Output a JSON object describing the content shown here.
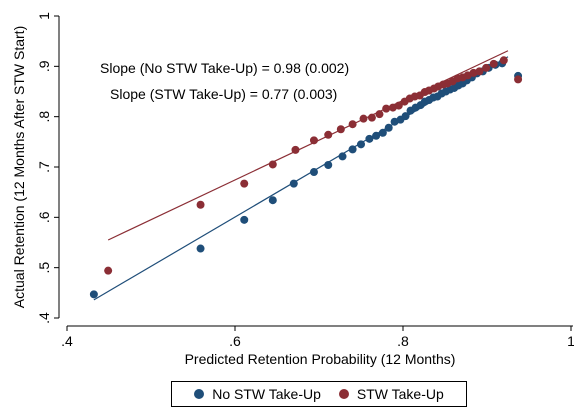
{
  "chart_data": {
    "type": "scatter",
    "title": "",
    "xlabel": "Predicted Retention Probability (12 Months)",
    "ylabel": "Actual Retention (12 Months After STW Start)",
    "xlim": [
      0.4,
      1.0
    ],
    "ylim": [
      0.4,
      1.0
    ],
    "xticks": [
      {
        "value": 0.4,
        "label": ".4"
      },
      {
        "value": 0.6,
        "label": ".6"
      },
      {
        "value": 0.8,
        "label": ".8"
      },
      {
        "value": 1.0,
        "label": "1"
      }
    ],
    "yticks": [
      {
        "value": 0.4,
        "label": ".4"
      },
      {
        "value": 0.5,
        "label": ".5"
      },
      {
        "value": 0.6,
        "label": ".6"
      },
      {
        "value": 0.7,
        "label": ".7"
      },
      {
        "value": 0.8,
        "label": ".8"
      },
      {
        "value": 0.9,
        "label": ".9"
      },
      {
        "value": 1.0,
        "label": "1"
      }
    ],
    "grid": false,
    "legend_position": "bottom",
    "annotations": [
      "Slope (No STW Take-Up) = 0.98 (0.002)",
      "Slope (STW Take-Up) = 0.77 (0.003)"
    ],
    "series": [
      {
        "name": "No STW Take-Up",
        "color": "#1f4e79",
        "x": [
          0.432,
          0.559,
          0.611,
          0.645,
          0.67,
          0.694,
          0.711,
          0.728,
          0.74,
          0.75,
          0.76,
          0.768,
          0.776,
          0.783,
          0.79,
          0.797,
          0.803,
          0.809,
          0.815,
          0.821,
          0.826,
          0.831,
          0.836,
          0.841,
          0.846,
          0.851,
          0.856,
          0.861,
          0.866,
          0.871,
          0.876,
          0.882,
          0.888,
          0.895,
          0.902,
          0.91,
          0.918,
          0.937
        ],
        "y": [
          0.447,
          0.538,
          0.595,
          0.634,
          0.667,
          0.69,
          0.704,
          0.721,
          0.735,
          0.745,
          0.756,
          0.762,
          0.768,
          0.778,
          0.79,
          0.794,
          0.801,
          0.812,
          0.818,
          0.823,
          0.83,
          0.833,
          0.838,
          0.84,
          0.846,
          0.85,
          0.854,
          0.857,
          0.862,
          0.866,
          0.872,
          0.878,
          0.886,
          0.89,
          0.897,
          0.903,
          0.906,
          0.881
        ],
        "fit": {
          "slope": 0.98,
          "x": [
            0.432,
            0.925
          ],
          "y": [
            0.436,
            0.919
          ]
        }
      },
      {
        "name": "STW Take-Up",
        "color": "#8b2e35",
        "x": [
          0.449,
          0.559,
          0.611,
          0.645,
          0.672,
          0.694,
          0.711,
          0.726,
          0.74,
          0.753,
          0.763,
          0.772,
          0.78,
          0.788,
          0.795,
          0.802,
          0.808,
          0.814,
          0.82,
          0.826,
          0.831,
          0.837,
          0.842,
          0.848,
          0.853,
          0.859,
          0.865,
          0.871,
          0.877,
          0.884,
          0.891,
          0.899,
          0.908,
          0.92,
          0.937
        ],
        "y": [
          0.494,
          0.625,
          0.667,
          0.705,
          0.734,
          0.753,
          0.764,
          0.775,
          0.785,
          0.796,
          0.798,
          0.805,
          0.816,
          0.818,
          0.822,
          0.83,
          0.836,
          0.84,
          0.842,
          0.849,
          0.852,
          0.856,
          0.86,
          0.864,
          0.866,
          0.87,
          0.876,
          0.878,
          0.882,
          0.887,
          0.89,
          0.897,
          0.905,
          0.912,
          0.874
        ],
        "fit": {
          "slope": 0.77,
          "x": [
            0.449,
            0.925
          ],
          "y": [
            0.555,
            0.931
          ]
        }
      }
    ]
  }
}
